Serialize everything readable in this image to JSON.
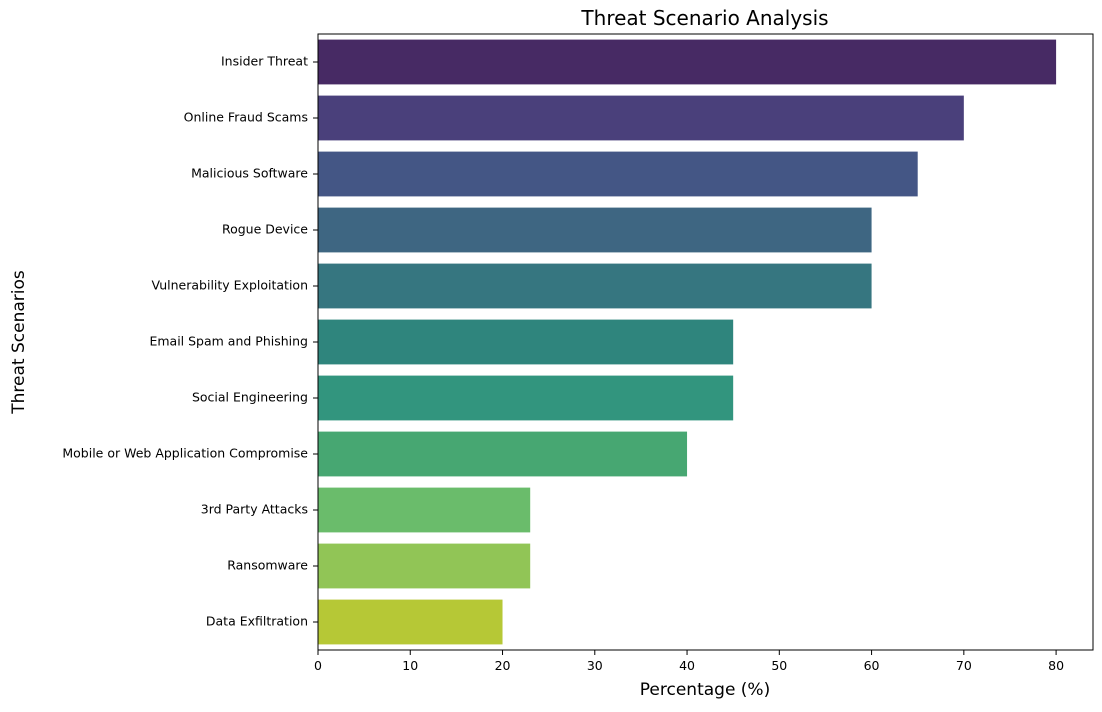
{
  "chart_data": {
    "type": "bar",
    "orientation": "horizontal",
    "title": "Threat Scenario Analysis",
    "xlabel": "Percentage (%)",
    "ylabel": "Threat Scenarios",
    "xlim": [
      0,
      84
    ],
    "xticks": [
      0,
      10,
      20,
      30,
      40,
      50,
      60,
      70,
      80
    ],
    "grid": false,
    "categories": [
      "Insider Threat",
      "Online Fraud Scams",
      "Malicious Software",
      "Rogue Device",
      "Vulnerability Exploitation",
      "Email Spam and Phishing",
      "Social Engineering",
      "Mobile or Web Application Compromise",
      "3rd Party Attacks",
      "Ransomware",
      "Data Exfiltration"
    ],
    "values": [
      80,
      70,
      65,
      60,
      60,
      45,
      45,
      40,
      23,
      23,
      20
    ],
    "colors": [
      "#472a64",
      "#4a407b",
      "#445685",
      "#3e6682",
      "#367680",
      "#2f857d",
      "#32957e",
      "#47a772",
      "#6abc6b",
      "#91c556",
      "#b6c836"
    ],
    "palette": "viridis"
  }
}
